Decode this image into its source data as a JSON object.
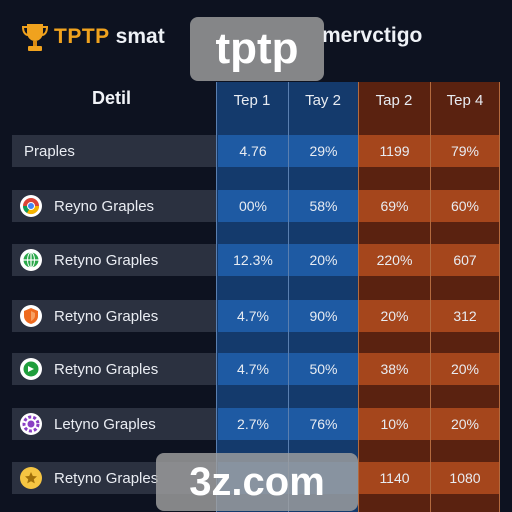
{
  "header": {
    "brand": "TPTP",
    "title_part": "smat",
    "title_tail": "mervctigo",
    "trophy_icon": "trophy-icon",
    "brand_color": "#f0a21e"
  },
  "watermarks": {
    "top": "tptp",
    "bottom": "3z.com"
  },
  "table": {
    "corner_label": "Detil",
    "columns": [
      "Tep 1",
      "Tay 2",
      "Tap 2",
      "Tep 4"
    ],
    "rows": [
      {
        "name": "Praples",
        "icon": "",
        "values": [
          "4.76",
          "29%",
          "1199",
          "79%"
        ]
      },
      {
        "name": "Reyno Graples",
        "icon": "chrome-icon",
        "values": [
          "00%",
          "58%",
          "69%",
          "60%"
        ]
      },
      {
        "name": "Retyno Graples",
        "icon": "green-globe-icon",
        "values": [
          "12.3%",
          "20%",
          "220%",
          "607"
        ]
      },
      {
        "name": "Retyno Graples",
        "icon": "orange-shield-icon",
        "values": [
          "4.7%",
          "90%",
          "20%",
          "312"
        ]
      },
      {
        "name": "Retyno Graples",
        "icon": "green-circle-icon",
        "values": [
          "4.7%",
          "50%",
          "38%",
          "20%"
        ]
      },
      {
        "name": "Letyno Graples",
        "icon": "purple-gear-icon",
        "values": [
          "2.7%",
          "76%",
          "10%",
          "20%"
        ]
      },
      {
        "name": "Retyno Graples",
        "icon": "yellow-star-icon",
        "values": [
          "",
          "",
          "1140",
          "1080"
        ]
      }
    ]
  },
  "colors": {
    "blue_panel": "#143a6c",
    "blue_cell": "#1e5aa3",
    "orange_panel": "#5a2210",
    "orange_cell": "#a5461c"
  }
}
